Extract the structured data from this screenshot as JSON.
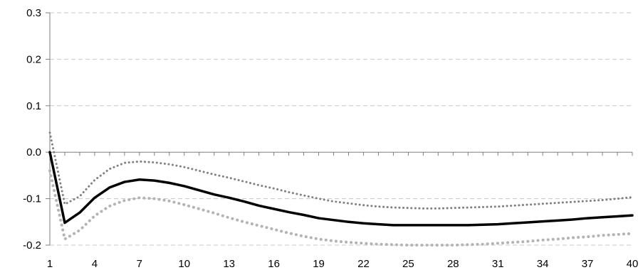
{
  "chart_data": {
    "type": "line",
    "title": "",
    "xlabel": "",
    "ylabel": "",
    "x": [
      1,
      2,
      3,
      4,
      5,
      6,
      7,
      8,
      9,
      10,
      11,
      12,
      13,
      14,
      15,
      16,
      17,
      18,
      19,
      20,
      21,
      22,
      23,
      24,
      25,
      26,
      27,
      28,
      29,
      30,
      31,
      32,
      33,
      34,
      35,
      36,
      37,
      38,
      39,
      40
    ],
    "series": [
      {
        "role": "central",
        "color": "#000000",
        "style": "solid",
        "values": [
          0.0,
          -0.152,
          -0.13,
          -0.098,
          -0.076,
          -0.064,
          -0.059,
          -0.061,
          -0.066,
          -0.073,
          -0.082,
          -0.091,
          -0.098,
          -0.106,
          -0.115,
          -0.122,
          -0.129,
          -0.135,
          -0.142,
          -0.146,
          -0.15,
          -0.153,
          -0.155,
          -0.157,
          -0.157,
          -0.157,
          -0.157,
          -0.157,
          -0.157,
          -0.156,
          -0.155,
          -0.153,
          -0.151,
          -0.149,
          -0.147,
          -0.145,
          -0.142,
          -0.14,
          -0.138,
          -0.136
        ]
      },
      {
        "role": "upper",
        "color": "#808080",
        "style": "dotted",
        "values": [
          0.042,
          -0.112,
          -0.095,
          -0.06,
          -0.036,
          -0.023,
          -0.02,
          -0.022,
          -0.026,
          -0.032,
          -0.04,
          -0.048,
          -0.055,
          -0.063,
          -0.071,
          -0.078,
          -0.086,
          -0.093,
          -0.1,
          -0.106,
          -0.11,
          -0.114,
          -0.117,
          -0.119,
          -0.12,
          -0.121,
          -0.121,
          -0.12,
          -0.119,
          -0.118,
          -0.117,
          -0.115,
          -0.113,
          -0.111,
          -0.109,
          -0.107,
          -0.105,
          -0.103,
          -0.1,
          -0.097
        ]
      },
      {
        "role": "lower",
        "color": "#b3b3b3",
        "style": "dotted",
        "values": [
          -0.04,
          -0.187,
          -0.168,
          -0.137,
          -0.116,
          -0.104,
          -0.098,
          -0.1,
          -0.105,
          -0.113,
          -0.122,
          -0.131,
          -0.141,
          -0.15,
          -0.158,
          -0.166,
          -0.174,
          -0.181,
          -0.187,
          -0.191,
          -0.194,
          -0.196,
          -0.198,
          -0.199,
          -0.2,
          -0.2,
          -0.2,
          -0.2,
          -0.199,
          -0.198,
          -0.196,
          -0.194,
          -0.192,
          -0.189,
          -0.187,
          -0.184,
          -0.182,
          -0.179,
          -0.177,
          -0.175
        ]
      }
    ],
    "xticks": [
      "1",
      "4",
      "7",
      "10",
      "13",
      "16",
      "19",
      "22",
      "25",
      "28",
      "31",
      "34",
      "37",
      "40"
    ],
    "yticks": [
      "0.3",
      "0.2",
      "0.1",
      "0.0",
      "-0.1",
      "-0.2"
    ],
    "ylim": [
      -0.2,
      0.3
    ],
    "xlim": [
      1,
      40
    ],
    "grid": "horizontal dashed",
    "legend": "none"
  }
}
